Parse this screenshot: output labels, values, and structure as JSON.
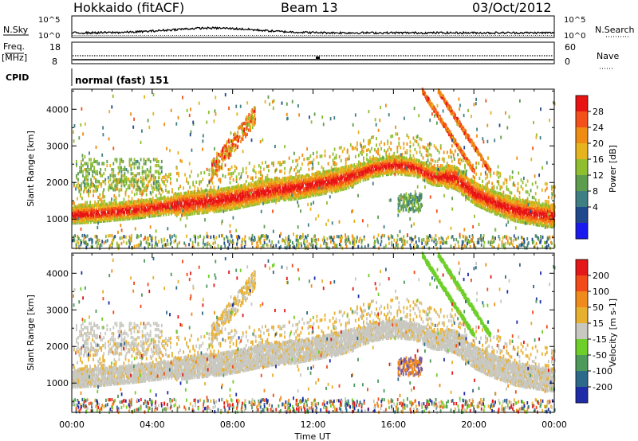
{
  "header": {
    "station": "Hokkaido (fitACF)",
    "beam": "Beam 13",
    "date": "03/Oct/2012"
  },
  "strips": {
    "nsky_label": "N.Sky",
    "nsearch_label": "N.Search",
    "nsky_ticks": [
      "10^5",
      "10^0"
    ],
    "nsearch_ticks": [
      "10^5",
      "10^0"
    ],
    "freq_label": "Freq.",
    "freq_unit": "[MHz]",
    "freq_ticks": [
      "18",
      "8"
    ],
    "nave_label": "Nave",
    "nave_ticks": [
      "60",
      "0"
    ],
    "cpid_label": "CPID",
    "cpid_value": "normal (fast) 151"
  },
  "colors": {
    "power": [
      "#1a1aee",
      "#20488c",
      "#3f7f84",
      "#5f9d4e",
      "#8fbf30",
      "#e6b41e",
      "#f08c14",
      "#f4501a",
      "#e81414"
    ],
    "velocity": [
      "#1e2ca8",
      "#2d6a8a",
      "#4d9a5a",
      "#6fcf2a",
      "#c8c8c0",
      "#e8b030",
      "#f08a1c",
      "#f24a18",
      "#e41818"
    ],
    "echo_grey": "#c8c8c0"
  },
  "chart_data": [
    {
      "type": "heatmap",
      "name": "power-panel",
      "ylabel": "Slant Range [km]",
      "yticks": [
        "1000",
        "2000",
        "3000",
        "4000"
      ],
      "ylim": [
        200,
        4550
      ],
      "xlim": [
        0,
        24
      ],
      "colorbar_label": "Power [dB]",
      "colorbar_ticks": [
        "28",
        "24",
        "20",
        "16",
        "12",
        "8",
        "4"
      ],
      "colorbar_range": [
        0,
        32
      ],
      "main_band_center_km": [
        [
          0,
          1120
        ],
        [
          1,
          1150
        ],
        [
          2,
          1200
        ],
        [
          3,
          1250
        ],
        [
          4,
          1320
        ],
        [
          5,
          1380
        ],
        [
          6,
          1450
        ],
        [
          7,
          1500
        ],
        [
          8,
          1580
        ],
        [
          9,
          1700
        ],
        [
          10,
          1800
        ],
        [
          11,
          1850
        ],
        [
          12,
          1950
        ],
        [
          13,
          2050
        ],
        [
          14,
          2200
        ],
        [
          15,
          2400
        ],
        [
          16,
          2480
        ],
        [
          17,
          2420
        ],
        [
          18,
          2150
        ],
        [
          19,
          2150
        ],
        [
          20,
          1700
        ],
        [
          21,
          1450
        ],
        [
          22,
          1250
        ],
        [
          23,
          1150
        ],
        [
          24,
          1080
        ]
      ]
    },
    {
      "type": "heatmap",
      "name": "velocity-panel",
      "ylabel": "Slant Range [km]",
      "yticks": [
        "1000",
        "2000",
        "3000",
        "4000"
      ],
      "ylim": [
        200,
        4550
      ],
      "xlim": [
        0,
        24
      ],
      "colorbar_label": "Velocity [m s-1]",
      "colorbar_ticks": [
        "200",
        "100",
        "50",
        "15",
        "-15",
        "-50",
        "-100",
        "-200"
      ],
      "colorbar_range": [
        -250,
        250
      ]
    }
  ],
  "xaxis": {
    "ticks": [
      "00:00",
      "04:00",
      "08:00",
      "12:00",
      "16:00",
      "20:00",
      "00:00"
    ],
    "label": "Time UT"
  }
}
